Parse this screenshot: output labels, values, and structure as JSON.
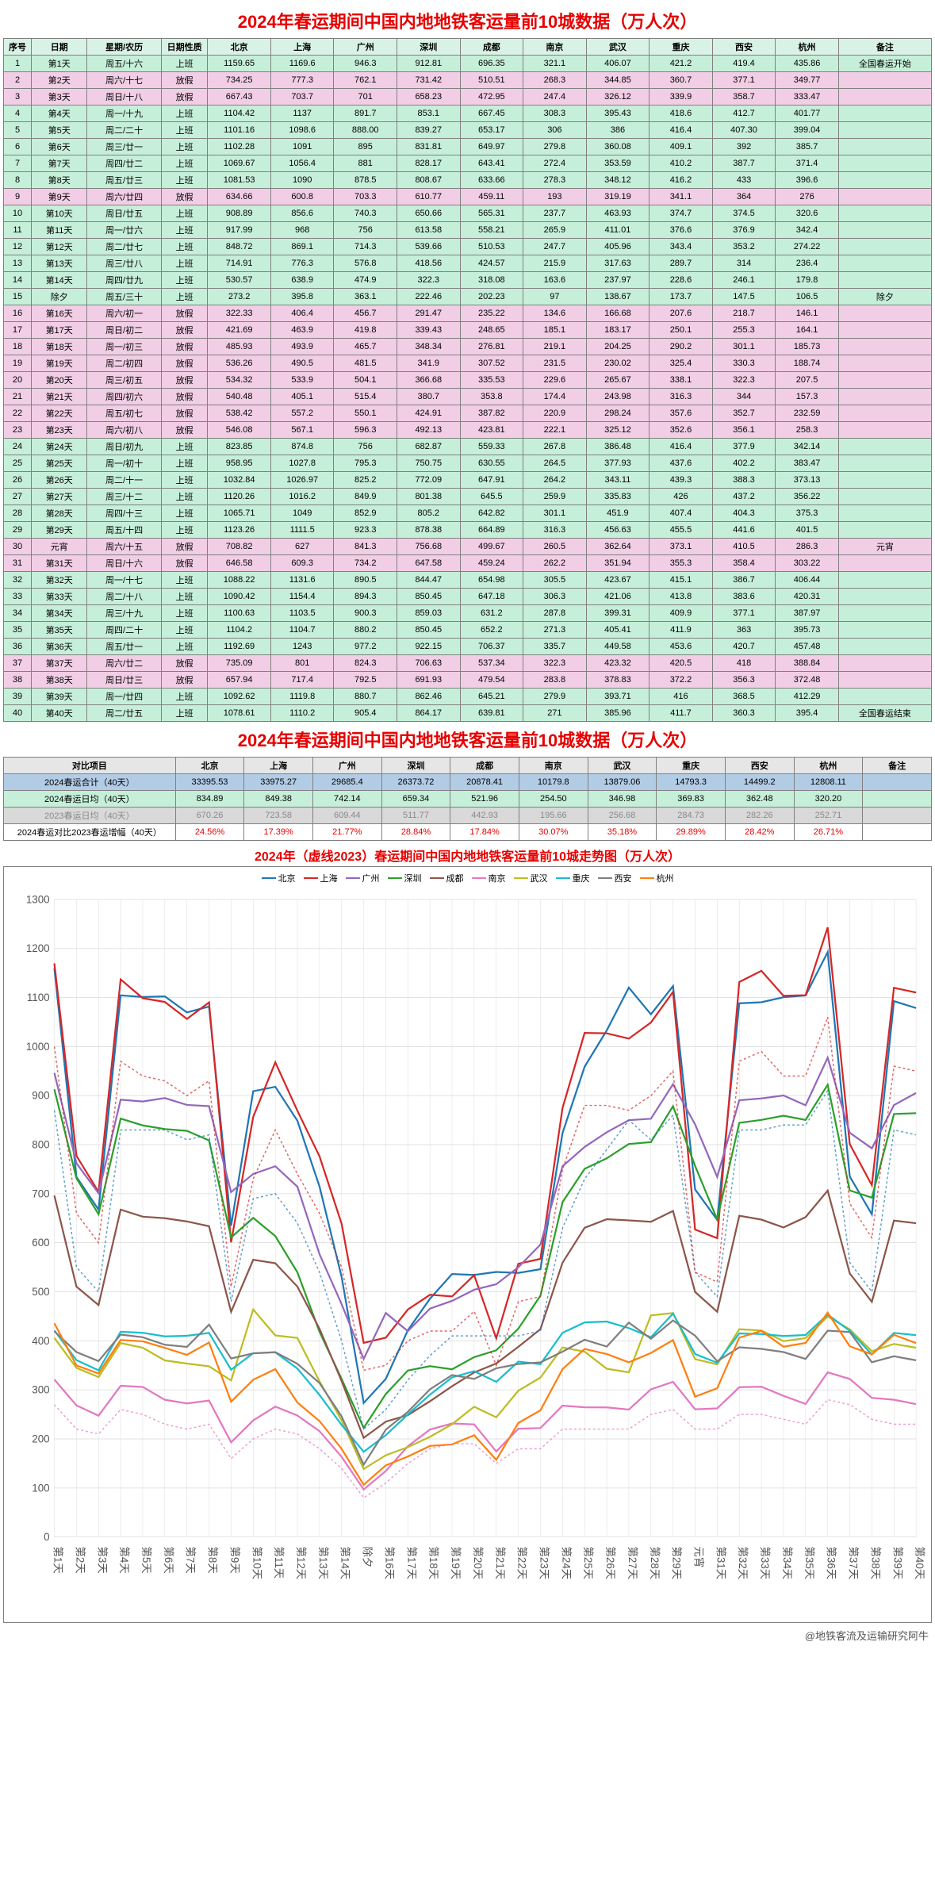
{
  "title": "2024年春运期间中国内地地铁客运量前10城数据（万人次）",
  "headers": [
    "序号",
    "日期",
    "星期/农历",
    "日期性质",
    "北京",
    "上海",
    "广州",
    "深圳",
    "成都",
    "南京",
    "武汉",
    "重庆",
    "西安",
    "杭州",
    "备注"
  ],
  "rows": [
    {
      "t": "work",
      "c": [
        "1",
        "第1天",
        "周五/十六",
        "上班",
        "1159.65",
        "1169.6",
        "946.3",
        "912.81",
        "696.35",
        "321.1",
        "406.07",
        "421.2",
        "419.4",
        "435.86",
        "全国春运开始"
      ]
    },
    {
      "t": "holiday",
      "c": [
        "2",
        "第2天",
        "周六/十七",
        "放假",
        "734.25",
        "777.3",
        "762.1",
        "731.42",
        "510.51",
        "268.3",
        "344.85",
        "360.7",
        "377.1",
        "349.77",
        ""
      ]
    },
    {
      "t": "holiday",
      "c": [
        "3",
        "第3天",
        "周日/十八",
        "放假",
        "667.43",
        "703.7",
        "701",
        "658.23",
        "472.95",
        "247.4",
        "326.12",
        "339.9",
        "358.7",
        "333.47",
        ""
      ]
    },
    {
      "t": "work",
      "c": [
        "4",
        "第4天",
        "周一/十九",
        "上班",
        "1104.42",
        "1137",
        "891.7",
        "853.1",
        "667.45",
        "308.3",
        "395.43",
        "418.6",
        "412.7",
        "401.77",
        ""
      ]
    },
    {
      "t": "work",
      "c": [
        "5",
        "第5天",
        "周二/二十",
        "上班",
        "1101.16",
        "1098.6",
        "888.00",
        "839.27",
        "653.17",
        "306",
        "386",
        "416.4",
        "407.30",
        "399.04",
        ""
      ]
    },
    {
      "t": "work",
      "c": [
        "6",
        "第6天",
        "周三/廿一",
        "上班",
        "1102.28",
        "1091",
        "895",
        "831.81",
        "649.97",
        "279.8",
        "360.08",
        "409.1",
        "392",
        "385.7",
        ""
      ]
    },
    {
      "t": "work",
      "c": [
        "7",
        "第7天",
        "周四/廿二",
        "上班",
        "1069.67",
        "1056.4",
        "881",
        "828.17",
        "643.41",
        "272.4",
        "353.59",
        "410.2",
        "387.7",
        "371.4",
        ""
      ]
    },
    {
      "t": "work",
      "c": [
        "8",
        "第8天",
        "周五/廿三",
        "上班",
        "1081.53",
        "1090",
        "878.5",
        "808.67",
        "633.66",
        "278.3",
        "348.12",
        "416.2",
        "433",
        "396.6",
        ""
      ]
    },
    {
      "t": "holiday",
      "c": [
        "9",
        "第9天",
        "周六/廿四",
        "放假",
        "634.66",
        "600.8",
        "703.3",
        "610.77",
        "459.11",
        "193",
        "319.19",
        "341.1",
        "364",
        "276",
        ""
      ]
    },
    {
      "t": "work",
      "c": [
        "10",
        "第10天",
        "周日/廿五",
        "上班",
        "908.89",
        "856.6",
        "740.3",
        "650.66",
        "565.31",
        "237.7",
        "463.93",
        "374.7",
        "374.5",
        "320.6",
        ""
      ]
    },
    {
      "t": "work",
      "c": [
        "11",
        "第11天",
        "周一/廿六",
        "上班",
        "917.99",
        "968",
        "756",
        "613.58",
        "558.21",
        "265.9",
        "411.01",
        "376.6",
        "376.9",
        "342.4",
        ""
      ]
    },
    {
      "t": "work",
      "c": [
        "12",
        "第12天",
        "周二/廿七",
        "上班",
        "848.72",
        "869.1",
        "714.3",
        "539.66",
        "510.53",
        "247.7",
        "405.96",
        "343.4",
        "353.2",
        "274.22",
        ""
      ]
    },
    {
      "t": "work",
      "c": [
        "13",
        "第13天",
        "周三/廿八",
        "上班",
        "714.91",
        "776.3",
        "576.8",
        "418.56",
        "424.57",
        "215.9",
        "317.63",
        "289.7",
        "314",
        "236.4",
        ""
      ]
    },
    {
      "t": "work",
      "c": [
        "14",
        "第14天",
        "周四/廿九",
        "上班",
        "530.57",
        "638.9",
        "474.9",
        "322.3",
        "318.08",
        "163.6",
        "237.97",
        "228.6",
        "246.1",
        "179.8",
        ""
      ]
    },
    {
      "t": "work",
      "c": [
        "15",
        "除夕",
        "周五/三十",
        "上班",
        "273.2",
        "395.8",
        "363.1",
        "222.46",
        "202.23",
        "97",
        "138.67",
        "173.7",
        "147.5",
        "106.5",
        "除夕"
      ]
    },
    {
      "t": "holiday",
      "c": [
        "16",
        "第16天",
        "周六/初一",
        "放假",
        "322.33",
        "406.4",
        "456.7",
        "291.47",
        "235.22",
        "134.6",
        "166.68",
        "207.6",
        "218.7",
        "146.1",
        ""
      ]
    },
    {
      "t": "holiday",
      "c": [
        "17",
        "第17天",
        "周日/初二",
        "放假",
        "421.69",
        "463.9",
        "419.8",
        "339.43",
        "248.65",
        "185.1",
        "183.17",
        "250.1",
        "255.3",
        "164.1",
        ""
      ]
    },
    {
      "t": "holiday",
      "c": [
        "18",
        "第18天",
        "周一/初三",
        "放假",
        "485.93",
        "493.9",
        "465.7",
        "348.34",
        "276.81",
        "219.1",
        "204.25",
        "290.2",
        "301.1",
        "185.73",
        ""
      ]
    },
    {
      "t": "holiday",
      "c": [
        "19",
        "第19天",
        "周二/初四",
        "放假",
        "536.26",
        "490.5",
        "481.5",
        "341.9",
        "307.52",
        "231.5",
        "230.02",
        "325.4",
        "330.3",
        "188.74",
        ""
      ]
    },
    {
      "t": "holiday",
      "c": [
        "20",
        "第20天",
        "周三/初五",
        "放假",
        "534.32",
        "533.9",
        "504.1",
        "366.68",
        "335.53",
        "229.6",
        "265.67",
        "338.1",
        "322.3",
        "207.5",
        ""
      ]
    },
    {
      "t": "holiday",
      "c": [
        "21",
        "第21天",
        "周四/初六",
        "放假",
        "540.48",
        "405.1",
        "515.4",
        "380.7",
        "353.8",
        "174.4",
        "243.98",
        "316.3",
        "344",
        "157.3",
        ""
      ]
    },
    {
      "t": "holiday",
      "c": [
        "22",
        "第22天",
        "周五/初七",
        "放假",
        "538.42",
        "557.2",
        "550.1",
        "424.91",
        "387.82",
        "220.9",
        "298.24",
        "357.6",
        "352.7",
        "232.59",
        ""
      ]
    },
    {
      "t": "holiday",
      "c": [
        "23",
        "第23天",
        "周六/初八",
        "放假",
        "546.08",
        "567.1",
        "596.3",
        "492.13",
        "423.81",
        "222.1",
        "325.12",
        "352.6",
        "356.1",
        "258.3",
        ""
      ]
    },
    {
      "t": "work",
      "c": [
        "24",
        "第24天",
        "周日/初九",
        "上班",
        "823.85",
        "874.8",
        "756",
        "682.87",
        "559.33",
        "267.8",
        "386.48",
        "416.4",
        "377.9",
        "342.14",
        ""
      ]
    },
    {
      "t": "work",
      "c": [
        "25",
        "第25天",
        "周一/初十",
        "上班",
        "958.95",
        "1027.8",
        "795.3",
        "750.75",
        "630.55",
        "264.5",
        "377.93",
        "437.6",
        "402.2",
        "383.47",
        ""
      ]
    },
    {
      "t": "work",
      "c": [
        "26",
        "第26天",
        "周二/十一",
        "上班",
        "1032.84",
        "1026.97",
        "825.2",
        "772.09",
        "647.91",
        "264.2",
        "343.11",
        "439.3",
        "388.3",
        "373.13",
        ""
      ]
    },
    {
      "t": "work",
      "c": [
        "27",
        "第27天",
        "周三/十二",
        "上班",
        "1120.26",
        "1016.2",
        "849.9",
        "801.38",
        "645.5",
        "259.9",
        "335.83",
        "426",
        "437.2",
        "356.22",
        ""
      ]
    },
    {
      "t": "work",
      "c": [
        "28",
        "第28天",
        "周四/十三",
        "上班",
        "1065.71",
        "1049",
        "852.9",
        "805.2",
        "642.82",
        "301.1",
        "451.9",
        "407.4",
        "404.3",
        "375.3",
        ""
      ]
    },
    {
      "t": "work",
      "c": [
        "29",
        "第29天",
        "周五/十四",
        "上班",
        "1123.26",
        "1111.5",
        "923.3",
        "878.38",
        "664.89",
        "316.3",
        "456.63",
        "455.5",
        "441.6",
        "401.5",
        ""
      ]
    },
    {
      "t": "holiday",
      "c": [
        "30",
        "元宵",
        "周六/十五",
        "放假",
        "708.82",
        "627",
        "841.3",
        "756.68",
        "499.67",
        "260.5",
        "362.64",
        "373.1",
        "410.5",
        "286.3",
        "元宵"
      ]
    },
    {
      "t": "holiday",
      "c": [
        "31",
        "第31天",
        "周日/十六",
        "放假",
        "646.58",
        "609.3",
        "734.2",
        "647.58",
        "459.24",
        "262.2",
        "351.94",
        "355.3",
        "358.4",
        "303.22",
        ""
      ]
    },
    {
      "t": "work",
      "c": [
        "32",
        "第32天",
        "周一/十七",
        "上班",
        "1088.22",
        "1131.6",
        "890.5",
        "844.47",
        "654.98",
        "305.5",
        "423.67",
        "415.1",
        "386.7",
        "406.44",
        ""
      ]
    },
    {
      "t": "work",
      "c": [
        "33",
        "第33天",
        "周二/十八",
        "上班",
        "1090.42",
        "1154.4",
        "894.3",
        "850.45",
        "647.18",
        "306.3",
        "421.06",
        "413.8",
        "383.6",
        "420.31",
        ""
      ]
    },
    {
      "t": "work",
      "c": [
        "34",
        "第34天",
        "周三/十九",
        "上班",
        "1100.63",
        "1103.5",
        "900.3",
        "859.03",
        "631.2",
        "287.8",
        "399.31",
        "409.9",
        "377.1",
        "387.97",
        ""
      ]
    },
    {
      "t": "work",
      "c": [
        "35",
        "第35天",
        "周四/二十",
        "上班",
        "1104.2",
        "1104.7",
        "880.2",
        "850.45",
        "652.2",
        "271.3",
        "405.41",
        "411.9",
        "363",
        "395.73",
        ""
      ]
    },
    {
      "t": "work",
      "c": [
        "36",
        "第36天",
        "周五/廿一",
        "上班",
        "1192.69",
        "1243",
        "977.2",
        "922.15",
        "706.37",
        "335.7",
        "449.58",
        "453.6",
        "420.7",
        "457.48",
        ""
      ]
    },
    {
      "t": "holiday",
      "c": [
        "37",
        "第37天",
        "周六/廿二",
        "放假",
        "735.09",
        "801",
        "824.3",
        "706.63",
        "537.34",
        "322.3",
        "423.32",
        "420.5",
        "418",
        "388.84",
        ""
      ]
    },
    {
      "t": "holiday",
      "c": [
        "38",
        "第38天",
        "周日/廿三",
        "放假",
        "657.94",
        "717.4",
        "792.5",
        "691.93",
        "479.54",
        "283.8",
        "378.83",
        "372.2",
        "356.3",
        "372.48",
        ""
      ]
    },
    {
      "t": "work",
      "c": [
        "39",
        "第39天",
        "周一/廿四",
        "上班",
        "1092.62",
        "1119.8",
        "880.7",
        "862.46",
        "645.21",
        "279.9",
        "393.71",
        "416",
        "368.5",
        "412.29",
        ""
      ]
    },
    {
      "t": "work",
      "c": [
        "40",
        "第40天",
        "周二/廿五",
        "上班",
        "1078.61",
        "1110.2",
        "905.4",
        "864.17",
        "639.81",
        "271",
        "385.96",
        "411.7",
        "360.3",
        "395.4",
        "全国春运结束"
      ]
    }
  ],
  "summary": {
    "headers": [
      "对比项目",
      "北京",
      "上海",
      "广州",
      "深圳",
      "成都",
      "南京",
      "武汉",
      "重庆",
      "西安",
      "杭州",
      "备注"
    ],
    "rows": [
      {
        "cls": "r-blue",
        "label": "2024春运合计（40天）",
        "v": [
          "33395.53",
          "33975.27",
          "29685.4",
          "26373.72",
          "20878.41",
          "10179.8",
          "13879.06",
          "14793.3",
          "14499.2",
          "12808.11",
          ""
        ]
      },
      {
        "cls": "r-green",
        "label": "2024春运日均（40天）",
        "v": [
          "834.89",
          "849.38",
          "742.14",
          "659.34",
          "521.96",
          "254.50",
          "346.98",
          "369.83",
          "362.48",
          "320.20",
          ""
        ]
      },
      {
        "cls": "r-grey",
        "label": "2023春运日均（40天）",
        "v": [
          "670.26",
          "723.58",
          "609.44",
          "511.77",
          "442.93",
          "195.66",
          "256.68",
          "284.73",
          "282.26",
          "252.71",
          ""
        ]
      },
      {
        "cls": "r-pct",
        "label": "2024春运对比2023春运增幅（40天）",
        "v": [
          "24.56%",
          "17.39%",
          "21.77%",
          "28.84%",
          "17.84%",
          "30.07%",
          "35.18%",
          "29.89%",
          "28.42%",
          "26.71%",
          ""
        ]
      }
    ]
  },
  "chart": {
    "title": "2024年（虚线2023）春运期间中国内地地铁客运量前10城走势图（万人次）",
    "cities": [
      "北京",
      "上海",
      "广州",
      "深圳",
      "成都",
      "南京",
      "武汉",
      "重庆",
      "西安",
      "杭州"
    ],
    "colors": [
      "#1f77b4",
      "#d62728",
      "#9467bd",
      "#2ca02c",
      "#8c564b",
      "#e377c2",
      "#bcbd22",
      "#17becf",
      "#7f7f7f",
      "#ff7f0e"
    ],
    "ylim": [
      0,
      1300
    ],
    "ystep": 100,
    "xlabels": [
      "第1天",
      "第2天",
      "第3天",
      "第4天",
      "第5天",
      "第6天",
      "第7天",
      "第8天",
      "第9天",
      "第10天",
      "第11天",
      "第12天",
      "第13天",
      "第14天",
      "除夕",
      "第16天",
      "第17天",
      "第18天",
      "第19天",
      "第20天",
      "第21天",
      "第22天",
      "第23天",
      "第24天",
      "第25天",
      "第26天",
      "第27天",
      "第28天",
      "第29天",
      "元宵",
      "第31天",
      "第32天",
      "第33天",
      "第34天",
      "第35天",
      "第36天",
      "第37天",
      "第38天",
      "第39天",
      "第40天"
    ],
    "series2023": {
      "北京": [
        870,
        550,
        500,
        830,
        830,
        830,
        810,
        820,
        480,
        690,
        700,
        640,
        540,
        400,
        220,
        260,
        320,
        370,
        410,
        410,
        410,
        410,
        420,
        630,
        730,
        790,
        850,
        810,
        860,
        540,
        490,
        830,
        830,
        840,
        840,
        910,
        560,
        500,
        830,
        820
      ],
      "上海": [
        1000,
        660,
        600,
        970,
        940,
        930,
        900,
        930,
        510,
        730,
        830,
        740,
        660,
        550,
        340,
        350,
        400,
        420,
        420,
        460,
        350,
        480,
        490,
        750,
        880,
        880,
        870,
        900,
        950,
        540,
        520,
        970,
        990,
        940,
        940,
        1060,
        680,
        610,
        960,
        950
      ],
      "南京": [
        270,
        220,
        210,
        260,
        250,
        230,
        220,
        230,
        160,
        200,
        220,
        210,
        180,
        140,
        80,
        110,
        150,
        180,
        190,
        190,
        150,
        180,
        180,
        220,
        220,
        220,
        220,
        250,
        260,
        220,
        220,
        250,
        250,
        240,
        230,
        280,
        270,
        240,
        230,
        230
      ]
    },
    "background": "#ffffff",
    "grid_color": "#d9d9d9",
    "axis_color": "#555",
    "line_width": 1.5
  },
  "footer": "@地铁客流及运输研究阿牛"
}
